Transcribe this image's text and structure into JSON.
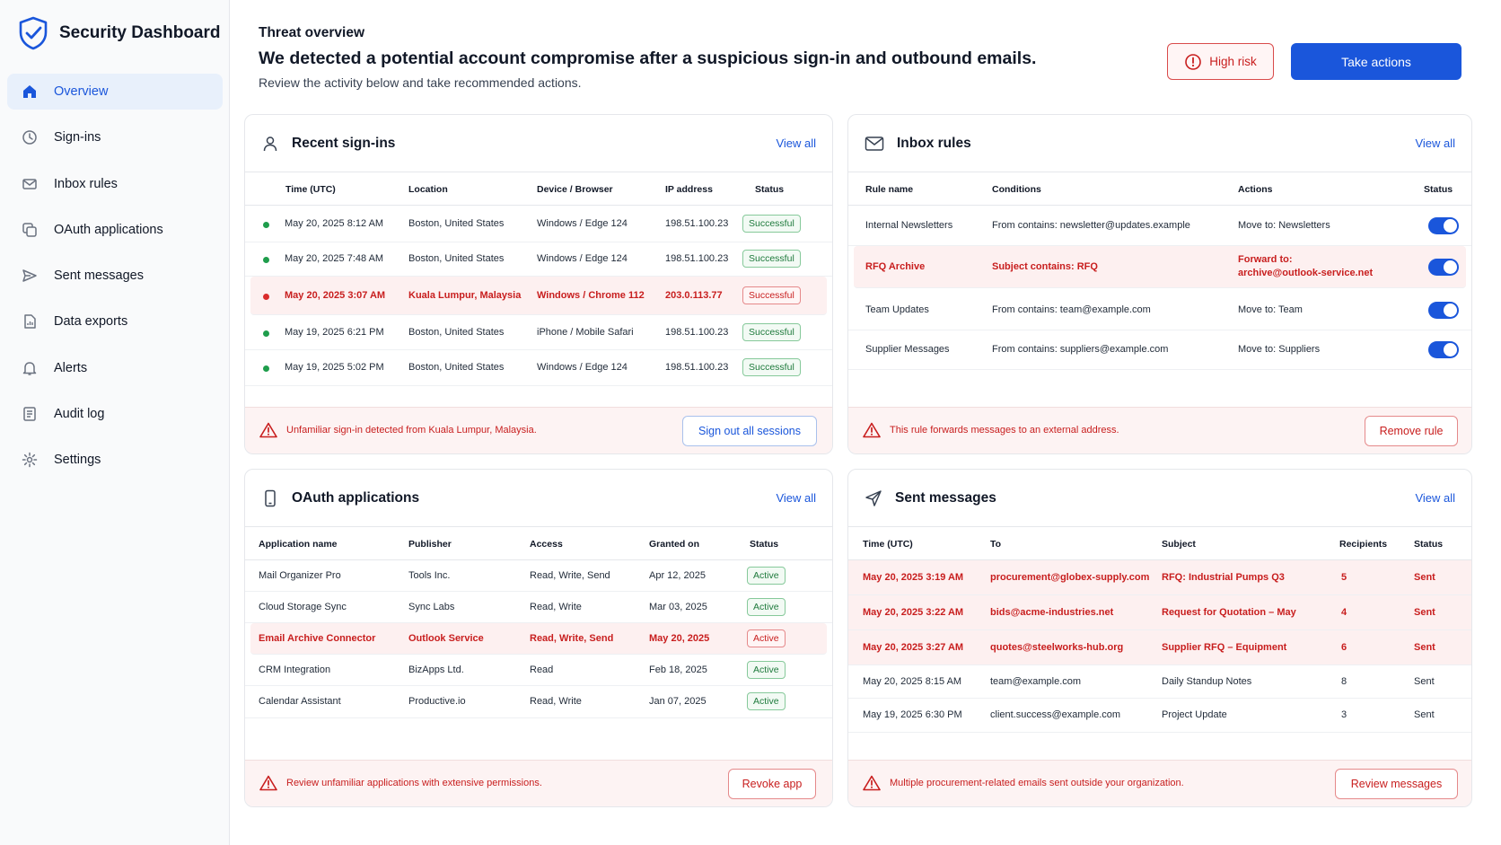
{
  "app": {
    "title": "Security Dashboard"
  },
  "sidebar": {
    "items": [
      {
        "label": "Overview",
        "icon": "home-icon",
        "active": true
      },
      {
        "label": "Sign-ins",
        "icon": "clock-icon"
      },
      {
        "label": "Inbox rules",
        "icon": "mail-icon"
      },
      {
        "label": "OAuth applications",
        "icon": "apps-icon"
      },
      {
        "label": "Sent messages",
        "icon": "send-icon"
      },
      {
        "label": "Data exports",
        "icon": "file-chart-icon"
      },
      {
        "label": "Alerts",
        "icon": "bell-icon"
      },
      {
        "label": "Audit log",
        "icon": "list-icon"
      },
      {
        "label": "Settings",
        "icon": "gear-icon"
      }
    ]
  },
  "header": {
    "eyebrow": "Threat overview",
    "headline": "We detected a potential account compromise after a suspicious sign-in and outbound emails.",
    "subline": "Review the activity below and take recommended actions.",
    "risk_label": "High risk",
    "primary_action": "Take actions"
  },
  "signins": {
    "title": "Recent sign-ins",
    "view_all": "View all",
    "columns": [
      "Time (UTC)",
      "Location",
      "Device / Browser",
      "IP address",
      "Status"
    ],
    "rows": [
      {
        "time": "May 20, 2025 8:12 AM",
        "location": "Boston, United States",
        "device": "Windows / Edge 124",
        "ip": "198.51.100.23",
        "status": "Successful",
        "suspicious": false
      },
      {
        "time": "May 20, 2025 7:48 AM",
        "location": "Boston, United States",
        "device": "Windows / Edge 124",
        "ip": "198.51.100.23",
        "status": "Successful",
        "suspicious": false
      },
      {
        "time": "May 20, 2025 3:07 AM",
        "location": "Kuala Lumpur, Malaysia",
        "device": "Windows / Chrome 112",
        "ip": "203.0.113.77",
        "status": "Successful",
        "suspicious": true
      },
      {
        "time": "May 19, 2025 6:21 PM",
        "location": "Boston, United States",
        "device": "iPhone / Mobile Safari",
        "ip": "198.51.100.23",
        "status": "Successful",
        "suspicious": false
      },
      {
        "time": "May 19, 2025 5:02 PM",
        "location": "Boston, United States",
        "device": "Windows / Edge 124",
        "ip": "198.51.100.23",
        "status": "Successful",
        "suspicious": false
      }
    ],
    "warning": "Unfamiliar sign-in detected from Kuala Lumpur, Malaysia.",
    "action": "Sign out all sessions"
  },
  "rules": {
    "title": "Inbox rules",
    "view_all": "View all",
    "columns": [
      "Rule name",
      "Conditions",
      "Actions",
      "Status"
    ],
    "rows": [
      {
        "name": "Internal Newsletters",
        "conditions": "From contains: newsletter@updates.example",
        "action": "Move to: Newsletters",
        "action2": "",
        "enabled": true,
        "suspicious": false
      },
      {
        "name": "RFQ Archive",
        "conditions": "Subject contains: RFQ",
        "action": "Forward to:",
        "action2": "archive@outlook-service.net",
        "enabled": true,
        "suspicious": true
      },
      {
        "name": "Team Updates",
        "conditions": "From contains: team@example.com",
        "action": "Move to: Team",
        "action2": "",
        "enabled": true,
        "suspicious": false
      },
      {
        "name": "Supplier Messages",
        "conditions": "From contains: suppliers@example.com",
        "action": "Move to: Suppliers",
        "action2": "",
        "enabled": true,
        "suspicious": false
      }
    ],
    "warning": "This rule forwards messages to an external address.",
    "action": "Remove rule"
  },
  "oauth": {
    "title": "OAuth applications",
    "view_all": "View all",
    "columns": [
      "Application name",
      "Publisher",
      "Access",
      "Granted on",
      "Status"
    ],
    "rows": [
      {
        "name": "Mail Organizer Pro",
        "publisher": "Tools Inc.",
        "access": "Read, Write, Send",
        "granted": "Apr 12, 2025",
        "status": "Active",
        "suspicious": false
      },
      {
        "name": "Cloud Storage Sync",
        "publisher": "Sync Labs",
        "access": "Read, Write",
        "granted": "Mar 03, 2025",
        "status": "Active",
        "suspicious": false
      },
      {
        "name": "Email Archive Connector",
        "publisher": "Outlook Service",
        "access": "Read, Write, Send",
        "granted": "May 20, 2025",
        "status": "Active",
        "suspicious": true
      },
      {
        "name": "CRM Integration",
        "publisher": "BizApps Ltd.",
        "access": "Read",
        "granted": "Feb 18, 2025",
        "status": "Active",
        "suspicious": false
      },
      {
        "name": "Calendar Assistant",
        "publisher": "Productive.io",
        "access": "Read, Write",
        "granted": "Jan 07, 2025",
        "status": "Active",
        "suspicious": false
      }
    ],
    "warning": "Review unfamiliar applications with extensive permissions.",
    "action": "Revoke app"
  },
  "sent": {
    "title": "Sent messages",
    "view_all": "View all",
    "columns": [
      "Time (UTC)",
      "To",
      "Subject",
      "Recipients",
      "Status"
    ],
    "rows": [
      {
        "time": "May 20, 2025 3:19 AM",
        "to": "procurement@globex-supply.com",
        "subject": "RFQ: Industrial Pumps Q3",
        "recipients": "5",
        "status": "Sent",
        "suspicious": true
      },
      {
        "time": "May 20, 2025 3:22 AM",
        "to": "bids@acme-industries.net",
        "subject": "Request for Quotation – May",
        "recipients": "4",
        "status": "Sent",
        "suspicious": true
      },
      {
        "time": "May 20, 2025 3:27 AM",
        "to": "quotes@steelworks-hub.org",
        "subject": "Supplier RFQ – Equipment",
        "recipients": "6",
        "status": "Sent",
        "suspicious": true
      },
      {
        "time": "May 20, 2025 8:15 AM",
        "to": "team@example.com",
        "subject": "Daily Standup Notes",
        "recipients": "8",
        "status": "Sent",
        "suspicious": false
      },
      {
        "time": "May 19, 2025 6:30 PM",
        "to": "client.success@example.com",
        "subject": "Project Update",
        "recipients": "3",
        "status": "Sent",
        "suspicious": false
      }
    ],
    "warning": "Multiple procurement-related emails sent outside your organization.",
    "action": "Review messages"
  },
  "colors": {
    "accent": "#1a56db",
    "danger": "#c81e1e",
    "success": "#1e7a3c",
    "danger_bg": "#fdf0f0"
  }
}
